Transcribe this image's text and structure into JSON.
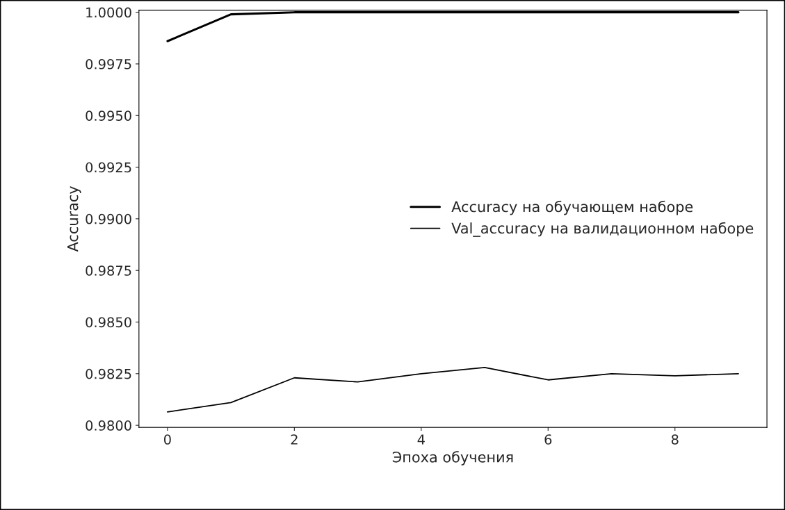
{
  "chart_data": {
    "type": "line",
    "xlabel": "Эпоха обучения",
    "ylabel": "Accuracy",
    "x": [
      0,
      1,
      2,
      3,
      4,
      5,
      6,
      7,
      8,
      9
    ],
    "series": [
      {
        "name": "Accuracy на обучающем наборе",
        "color": "#000000",
        "values": [
          0.9986,
          0.9999,
          1.0,
          1.0,
          1.0,
          1.0,
          1.0,
          1.0,
          1.0,
          1.0
        ]
      },
      {
        "name": "Val_accuracy на валидационном наборе",
        "color": "#000000",
        "values": [
          0.98065,
          0.9811,
          0.9823,
          0.9821,
          0.9825,
          0.9828,
          0.9822,
          0.9825,
          0.9824,
          0.9825
        ]
      }
    ],
    "xlim": [
      -0.45,
      9.45
    ],
    "ylim": [
      0.9799,
      1.0001
    ],
    "xticks": [
      0,
      2,
      4,
      6,
      8
    ],
    "yticks": [
      {
        "value": 0.98,
        "label": "0.9800"
      },
      {
        "value": 0.9825,
        "label": "0.9825"
      },
      {
        "value": 0.985,
        "label": "0.9850"
      },
      {
        "value": 0.9875,
        "label": "0.9875"
      },
      {
        "value": 0.99,
        "label": "0.9900"
      },
      {
        "value": 0.9925,
        "label": "0.9925"
      },
      {
        "value": 0.995,
        "label": "0.9950"
      },
      {
        "value": 0.9975,
        "label": "0.9975"
      },
      {
        "value": 1.0,
        "label": "1.0000"
      }
    ],
    "grid": false,
    "legend": "center right",
    "marker": "none",
    "line_style": "solid"
  }
}
